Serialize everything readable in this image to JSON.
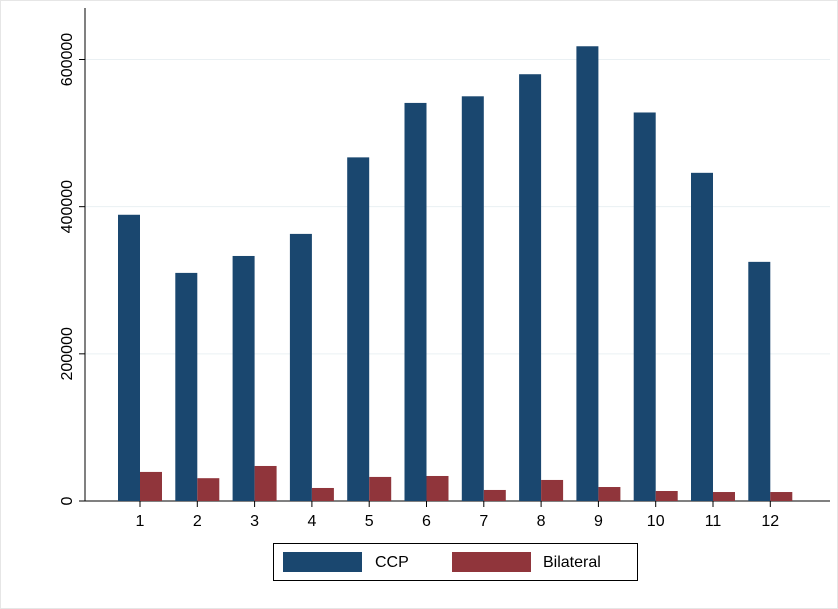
{
  "chart_data": {
    "type": "bar",
    "categories": [
      "1",
      "2",
      "3",
      "4",
      "5",
      "6",
      "7",
      "8",
      "9",
      "10",
      "11",
      "12"
    ],
    "series": [
      {
        "name": "CCP",
        "color": "#1a476f",
        "values": [
          389000,
          310000,
          333000,
          363000,
          467000,
          541000,
          550000,
          580000,
          618000,
          528000,
          446000,
          325000
        ]
      },
      {
        "name": "Bilateral",
        "color": "#90353b",
        "values": [
          39500,
          31000,
          47600,
          17700,
          32700,
          34000,
          15000,
          28600,
          19000,
          13600,
          12200,
          12200
        ]
      }
    ],
    "ylim": [
      0,
      670000
    ],
    "yticks": [
      0,
      200000,
      400000,
      600000
    ],
    "grid": true,
    "legend": "bottom"
  }
}
